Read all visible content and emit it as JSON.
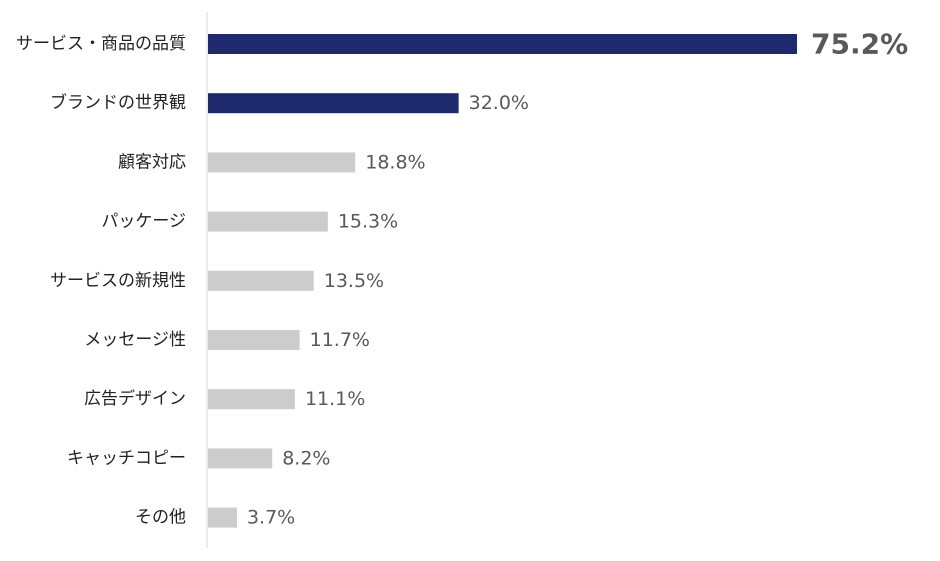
{
  "chart_data": {
    "type": "bar",
    "orientation": "horizontal",
    "categories": [
      "サービス・商品の品質",
      "ブランドの世界観",
      "顧客対応",
      "パッケージ",
      "サービスの新規性",
      "メッセージ性",
      "広告デザイン",
      "キャッチコピー",
      "その他"
    ],
    "values": [
      75.2,
      32.0,
      18.8,
      15.3,
      13.5,
      11.7,
      11.1,
      8.2,
      3.7
    ],
    "value_labels": [
      "75.2%",
      "32.0%",
      "18.8%",
      "15.3%",
      "13.5%",
      "11.7%",
      "11.1%",
      "8.2%",
      "3.7%"
    ],
    "xlim": [
      0,
      75.2
    ],
    "title": "",
    "xlabel": "",
    "ylabel": "",
    "grid": false,
    "highlight_count": 2,
    "colors": {
      "highlight_bar": "#1f2a6e",
      "default_bar": "#cccccc",
      "emphasis_label": "#f5a21b",
      "label_text": "#595959",
      "category_text": "#222222",
      "axis_line": "#d9d9d9"
    }
  }
}
